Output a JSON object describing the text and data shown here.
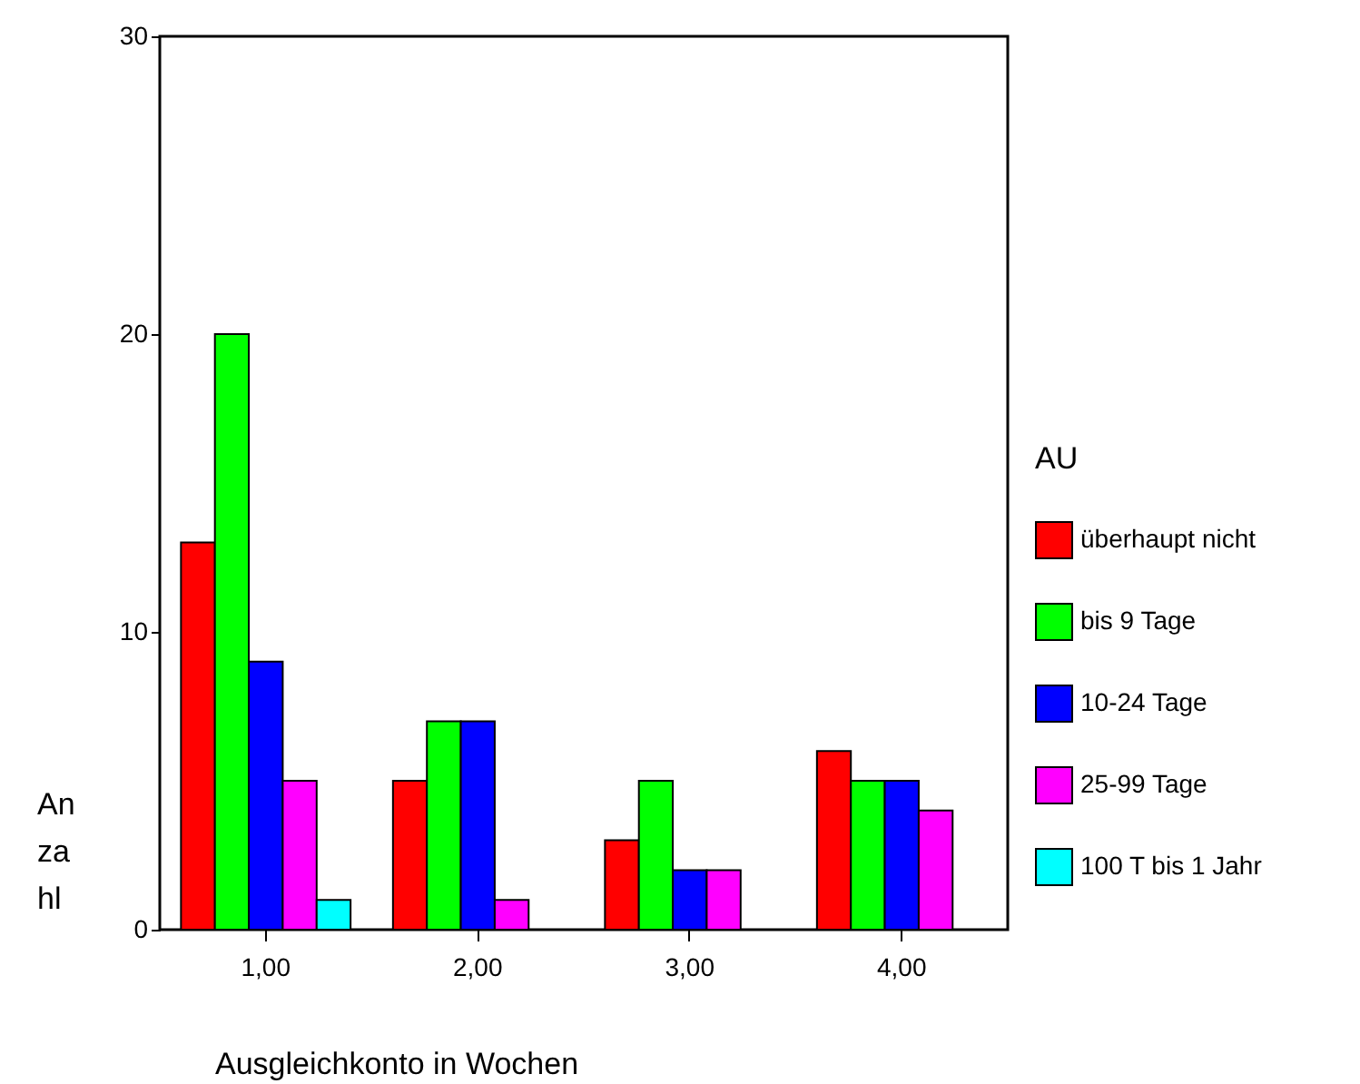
{
  "chart_data": {
    "type": "bar",
    "xlabel": "Ausgleichkonto in Wochen",
    "ylabel": "Anzahl",
    "legend_title": "AU",
    "categories": [
      "1,00",
      "2,00",
      "3,00",
      "4,00"
    ],
    "series": [
      {
        "name": "überhaupt nicht",
        "color": "#ff0000",
        "values": [
          13,
          5,
          3,
          6
        ]
      },
      {
        "name": "bis 9 Tage",
        "color": "#00ff00",
        "values": [
          20,
          7,
          5,
          5
        ]
      },
      {
        "name": "10-24 Tage",
        "color": "#0000ff",
        "values": [
          9,
          7,
          2,
          5
        ]
      },
      {
        "name": "25-99 Tage",
        "color": "#ff00ff",
        "values": [
          5,
          1,
          2,
          4
        ]
      },
      {
        "name": "100 T bis 1 Jahr",
        "color": "#00ffff",
        "values": [
          1,
          null,
          null,
          null
        ]
      }
    ],
    "ylim": [
      0,
      30
    ],
    "yticks": [
      0,
      10,
      20,
      30
    ],
    "grid": false,
    "legend": "right"
  }
}
